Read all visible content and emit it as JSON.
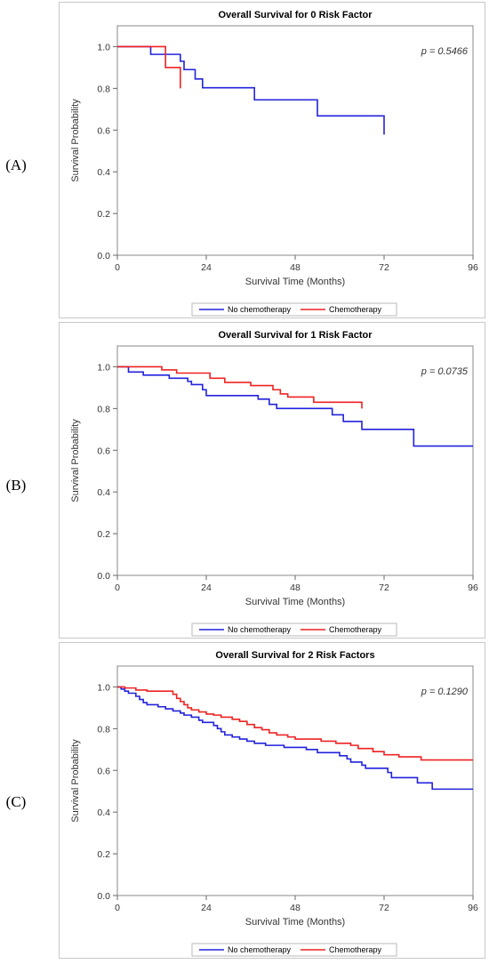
{
  "chart_data": [
    {
      "type": "line",
      "panel_label": "(A)",
      "title": "Overall Survival for 0 Risk Factor",
      "xlabel": "Survival Time (Months)",
      "ylabel": "Survival Probability",
      "p_value": "p = 0.5466",
      "xlim": [
        0,
        96
      ],
      "ylim": [
        0,
        1.1
      ],
      "xticks": [
        "0",
        "24",
        "48",
        "72",
        "96"
      ],
      "yticks": [
        "0.0",
        "0.2",
        "0.4",
        "0.6",
        "0.8",
        "1.0"
      ],
      "legend_position": "bottom",
      "series": [
        {
          "name": "No chemotherapy",
          "color": "#2222dd",
          "points": [
            [
              0,
              1.0
            ],
            [
              9,
              1.0
            ],
            [
              9,
              0.963
            ],
            [
              17,
              0.963
            ],
            [
              17,
              0.93
            ],
            [
              18,
              0.93
            ],
            [
              18,
              0.89
            ],
            [
              21,
              0.89
            ],
            [
              21,
              0.845
            ],
            [
              23,
              0.845
            ],
            [
              23,
              0.803
            ],
            [
              37,
              0.803
            ],
            [
              37,
              0.745
            ],
            [
              54,
              0.745
            ],
            [
              54,
              0.668
            ],
            [
              72,
              0.668
            ],
            [
              72,
              0.578
            ]
          ]
        },
        {
          "name": "Chemotherapy",
          "color": "#ee2222",
          "points": [
            [
              0,
              1.0
            ],
            [
              13,
              1.0
            ],
            [
              13,
              0.9
            ],
            [
              17,
              0.9
            ],
            [
              17,
              0.8
            ]
          ]
        }
      ]
    },
    {
      "type": "line",
      "panel_label": "(B)",
      "title": "Overall Survival for 1 Risk Factor",
      "xlabel": "Survival Time (Months)",
      "ylabel": "Survival Probability",
      "p_value": "p = 0.0735",
      "xlim": [
        0,
        96
      ],
      "ylim": [
        0,
        1.1
      ],
      "xticks": [
        "0",
        "24",
        "48",
        "72",
        "96"
      ],
      "yticks": [
        "0.0",
        "0.2",
        "0.4",
        "0.6",
        "0.8",
        "1.0"
      ],
      "legend_position": "bottom",
      "series": [
        {
          "name": "No chemotherapy",
          "color": "#2222dd",
          "points": [
            [
              0,
              1.0
            ],
            [
              3,
              1.0
            ],
            [
              3,
              0.975
            ],
            [
              7,
              0.975
            ],
            [
              7,
              0.96
            ],
            [
              14,
              0.96
            ],
            [
              14,
              0.945
            ],
            [
              19,
              0.945
            ],
            [
              19,
              0.93
            ],
            [
              20,
              0.93
            ],
            [
              20,
              0.915
            ],
            [
              23,
              0.915
            ],
            [
              23,
              0.89
            ],
            [
              24,
              0.89
            ],
            [
              24,
              0.862
            ],
            [
              38,
              0.862
            ],
            [
              38,
              0.845
            ],
            [
              41,
              0.845
            ],
            [
              41,
              0.82
            ],
            [
              43,
              0.82
            ],
            [
              43,
              0.8
            ],
            [
              58,
              0.8
            ],
            [
              58,
              0.77
            ],
            [
              61,
              0.77
            ],
            [
              61,
              0.738
            ],
            [
              66,
              0.738
            ],
            [
              66,
              0.7
            ],
            [
              80,
              0.7
            ],
            [
              80,
              0.62
            ],
            [
              96,
              0.62
            ]
          ]
        },
        {
          "name": "Chemotherapy",
          "color": "#ee2222",
          "points": [
            [
              0,
              1.0
            ],
            [
              12,
              1.0
            ],
            [
              12,
              0.985
            ],
            [
              16,
              0.985
            ],
            [
              16,
              0.97
            ],
            [
              25,
              0.97
            ],
            [
              25,
              0.945
            ],
            [
              29,
              0.945
            ],
            [
              29,
              0.925
            ],
            [
              36,
              0.925
            ],
            [
              36,
              0.91
            ],
            [
              42,
              0.91
            ],
            [
              42,
              0.89
            ],
            [
              44,
              0.89
            ],
            [
              44,
              0.87
            ],
            [
              46,
              0.87
            ],
            [
              46,
              0.855
            ],
            [
              53,
              0.855
            ],
            [
              53,
              0.83
            ],
            [
              66,
              0.83
            ],
            [
              66,
              0.8
            ]
          ]
        }
      ]
    },
    {
      "type": "line",
      "panel_label": "(C)",
      "title": "Overall Survival for 2 Risk Factors",
      "xlabel": "Survival Time (Months)",
      "ylabel": "Survival Probability",
      "p_value": "p = 0.1290",
      "xlim": [
        0,
        96
      ],
      "ylim": [
        0,
        1.1
      ],
      "xticks": [
        "0",
        "24",
        "48",
        "72",
        "96"
      ],
      "yticks": [
        "0.0",
        "0.2",
        "0.4",
        "0.6",
        "0.8",
        "1.0"
      ],
      "legend_position": "bottom",
      "series": [
        {
          "name": "No chemotherapy",
          "color": "#2222dd",
          "points": [
            [
              0,
              1.0
            ],
            [
              1,
              1.0
            ],
            [
              1,
              0.99
            ],
            [
              2,
              0.99
            ],
            [
              2,
              0.98
            ],
            [
              3,
              0.98
            ],
            [
              3,
              0.97
            ],
            [
              5,
              0.97
            ],
            [
              5,
              0.955
            ],
            [
              6,
              0.955
            ],
            [
              6,
              0.94
            ],
            [
              7,
              0.94
            ],
            [
              7,
              0.925
            ],
            [
              8,
              0.925
            ],
            [
              8,
              0.915
            ],
            [
              11,
              0.915
            ],
            [
              11,
              0.905
            ],
            [
              13,
              0.905
            ],
            [
              13,
              0.895
            ],
            [
              15,
              0.895
            ],
            [
              15,
              0.885
            ],
            [
              17,
              0.885
            ],
            [
              17,
              0.875
            ],
            [
              18,
              0.875
            ],
            [
              18,
              0.865
            ],
            [
              20,
              0.865
            ],
            [
              20,
              0.855
            ],
            [
              22,
              0.855
            ],
            [
              22,
              0.84
            ],
            [
              23,
              0.84
            ],
            [
              23,
              0.83
            ],
            [
              26,
              0.83
            ],
            [
              26,
              0.815
            ],
            [
              27,
              0.815
            ],
            [
              27,
              0.8
            ],
            [
              28,
              0.8
            ],
            [
              28,
              0.785
            ],
            [
              29,
              0.785
            ],
            [
              29,
              0.77
            ],
            [
              31,
              0.77
            ],
            [
              31,
              0.76
            ],
            [
              33,
              0.76
            ],
            [
              33,
              0.75
            ],
            [
              35,
              0.75
            ],
            [
              35,
              0.74
            ],
            [
              37,
              0.74
            ],
            [
              37,
              0.73
            ],
            [
              40,
              0.73
            ],
            [
              40,
              0.72
            ],
            [
              45,
              0.72
            ],
            [
              45,
              0.71
            ],
            [
              51,
              0.71
            ],
            [
              51,
              0.7
            ],
            [
              54,
              0.7
            ],
            [
              54,
              0.685
            ],
            [
              60,
              0.685
            ],
            [
              60,
              0.67
            ],
            [
              62,
              0.67
            ],
            [
              62,
              0.655
            ],
            [
              63,
              0.655
            ],
            [
              63,
              0.64
            ],
            [
              66,
              0.64
            ],
            [
              66,
              0.625
            ],
            [
              67,
              0.625
            ],
            [
              67,
              0.61
            ],
            [
              73,
              0.61
            ],
            [
              73,
              0.59
            ],
            [
              74,
              0.59
            ],
            [
              74,
              0.565
            ],
            [
              81,
              0.565
            ],
            [
              81,
              0.54
            ],
            [
              85,
              0.54
            ],
            [
              85,
              0.51
            ],
            [
              96,
              0.51
            ]
          ]
        },
        {
          "name": "Chemotherapy",
          "color": "#ee2222",
          "points": [
            [
              0,
              1.0
            ],
            [
              2,
              1.0
            ],
            [
              2,
              0.995
            ],
            [
              5,
              0.995
            ],
            [
              5,
              0.985
            ],
            [
              8,
              0.985
            ],
            [
              8,
              0.98
            ],
            [
              15,
              0.98
            ],
            [
              15,
              0.965
            ],
            [
              16,
              0.965
            ],
            [
              16,
              0.945
            ],
            [
              17,
              0.945
            ],
            [
              17,
              0.93
            ],
            [
              18,
              0.93
            ],
            [
              18,
              0.915
            ],
            [
              19,
              0.915
            ],
            [
              19,
              0.9
            ],
            [
              20,
              0.9
            ],
            [
              20,
              0.89
            ],
            [
              22,
              0.89
            ],
            [
              22,
              0.88
            ],
            [
              24,
              0.88
            ],
            [
              24,
              0.87
            ],
            [
              26,
              0.87
            ],
            [
              26,
              0.865
            ],
            [
              28,
              0.865
            ],
            [
              28,
              0.855
            ],
            [
              31,
              0.855
            ],
            [
              31,
              0.845
            ],
            [
              33,
              0.845
            ],
            [
              33,
              0.835
            ],
            [
              35,
              0.835
            ],
            [
              35,
              0.82
            ],
            [
              37,
              0.82
            ],
            [
              37,
              0.805
            ],
            [
              39,
              0.805
            ],
            [
              39,
              0.795
            ],
            [
              41,
              0.795
            ],
            [
              41,
              0.78
            ],
            [
              43,
              0.78
            ],
            [
              43,
              0.77
            ],
            [
              46,
              0.77
            ],
            [
              46,
              0.76
            ],
            [
              48,
              0.76
            ],
            [
              48,
              0.75
            ],
            [
              55,
              0.75
            ],
            [
              55,
              0.74
            ],
            [
              59,
              0.74
            ],
            [
              59,
              0.73
            ],
            [
              63,
              0.73
            ],
            [
              63,
              0.72
            ],
            [
              65,
              0.72
            ],
            [
              65,
              0.705
            ],
            [
              69,
              0.705
            ],
            [
              69,
              0.69
            ],
            [
              72,
              0.69
            ],
            [
              72,
              0.675
            ],
            [
              76,
              0.675
            ],
            [
              76,
              0.665
            ],
            [
              82,
              0.665
            ],
            [
              82,
              0.65
            ],
            [
              96,
              0.65
            ]
          ]
        }
      ]
    }
  ]
}
